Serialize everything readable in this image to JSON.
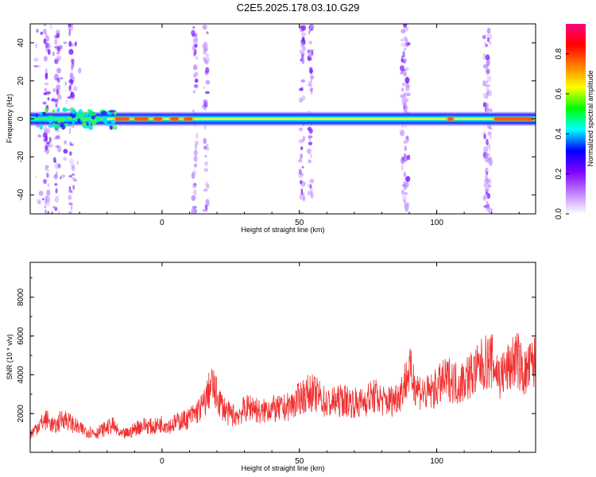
{
  "title": "C2E5.2025.178.03.10.G29",
  "chart_data": [
    {
      "type": "heatmap",
      "xlabel": "Height of straight line (km)",
      "ylabel": "Frequency (Hz)",
      "xlim": [
        -48,
        136
      ],
      "ylim": [
        -50,
        50
      ],
      "xticks": [
        0,
        50,
        100
      ],
      "yticks": [
        -40,
        -20,
        0,
        20,
        40
      ],
      "colorbar": {
        "label": "Normalized spectral amplitude",
        "range": [
          0,
          0.95
        ],
        "ticks": [
          0.0,
          0.2,
          0.4,
          0.6,
          0.8
        ],
        "tick_labels": [
          "0.0",
          "0.2",
          "0.4",
          "0.6",
          "0.8"
        ],
        "colormap": [
          "#ffffff",
          "#c080ff",
          "#8000ff",
          "#0000ff",
          "#00ffff",
          "#00ff00",
          "#ffff00",
          "#ff8000",
          "#ff0000",
          "#ff0080"
        ]
      },
      "ridge": {
        "frequency": 0,
        "x_range": [
          -48,
          136
        ],
        "peak_segments": [
          [
            -17,
            -12
          ],
          [
            -10,
            -5
          ],
          [
            -3,
            0
          ],
          [
            3,
            6
          ],
          [
            8,
            11
          ],
          [
            104,
            106
          ],
          [
            121,
            135
          ]
        ]
      },
      "vertical_streaks_x": [
        -42,
        -38,
        -33,
        12,
        16,
        51,
        54,
        88,
        89,
        118,
        119
      ]
    },
    {
      "type": "line",
      "xlabel": "Height of straight line (km)",
      "ylabel": "SNR (10 * v/v)",
      "xlim": [
        -48,
        136
      ],
      "ylim": [
        0,
        9800
      ],
      "xticks": [
        0,
        50,
        100
      ],
      "yticks": [
        2000,
        4000,
        6000,
        8000
      ],
      "series": [
        {
          "color": "#f03030",
          "x": [
            -48,
            -45,
            -42,
            -39,
            -36,
            -33,
            -30,
            -27,
            -24,
            -21,
            -18,
            -15,
            -12,
            -9,
            -6,
            -3,
            0,
            3,
            6,
            9,
            12,
            15,
            18,
            21,
            24,
            27,
            30,
            33,
            36,
            39,
            42,
            45,
            48,
            51,
            54,
            57,
            60,
            63,
            66,
            69,
            72,
            75,
            78,
            81,
            84,
            87,
            90,
            93,
            96,
            99,
            102,
            105,
            108,
            111,
            114,
            117,
            120,
            123,
            126,
            129,
            132,
            135
          ],
          "y": [
            900,
            1400,
            1700,
            1300,
            1800,
            1500,
            1200,
            1100,
            1000,
            1200,
            1400,
            900,
            1000,
            1300,
            1400,
            1300,
            1500,
            1400,
            1600,
            1700,
            2000,
            2400,
            3500,
            2600,
            2000,
            1900,
            2200,
            2400,
            2000,
            2300,
            2200,
            2300,
            2500,
            2900,
            3100,
            2900,
            2500,
            2600,
            2700,
            2600,
            2500,
            2800,
            2900,
            2600,
            2700,
            3100,
            4200,
            3300,
            3000,
            3200,
            3600,
            3800,
            3500,
            3900,
            4100,
            4600,
            4700,
            3900,
            4300,
            4900,
            4000,
            4600
          ]
        }
      ]
    }
  ]
}
